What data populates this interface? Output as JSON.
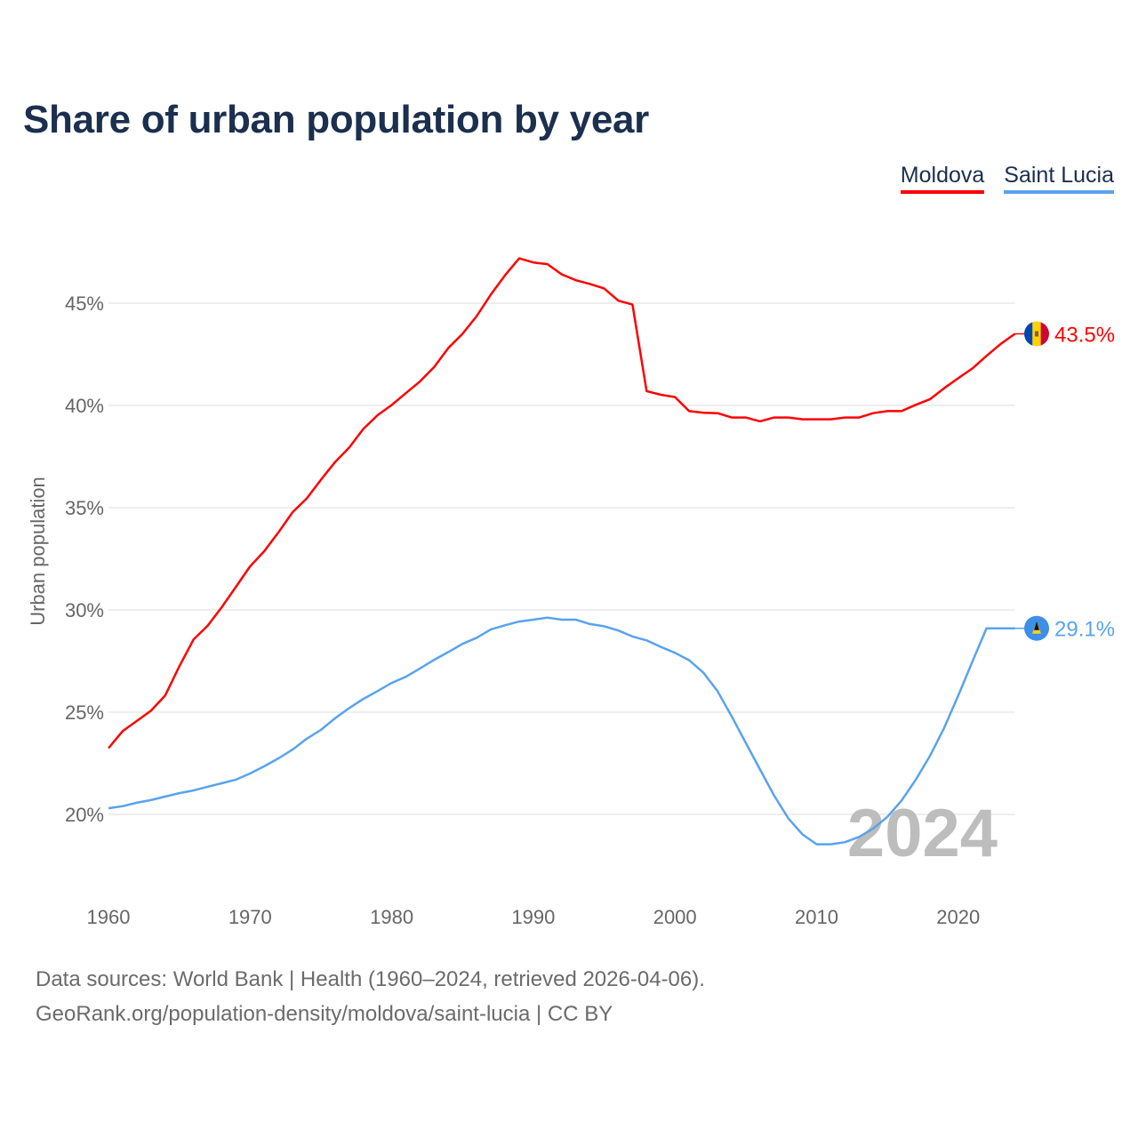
{
  "chart_data": {
    "type": "line",
    "title": "Share of urban population by year",
    "xlabel": "",
    "ylabel": "Urban population",
    "xlim": [
      1960,
      2024
    ],
    "ylim": [
      16.5,
      48.5
    ],
    "x_ticks": [
      1960,
      1970,
      1980,
      1990,
      2000,
      2010,
      2020
    ],
    "y_ticks": [
      20,
      25,
      30,
      35,
      40,
      45
    ],
    "y_tick_labels": [
      "20%",
      "25%",
      "30%",
      "35%",
      "40%",
      "45%"
    ],
    "grid": true,
    "legend_position": "top-right",
    "watermark_year": "2024",
    "x": [
      1960,
      1961,
      1962,
      1963,
      1964,
      1965,
      1966,
      1967,
      1968,
      1969,
      1970,
      1971,
      1972,
      1973,
      1974,
      1975,
      1976,
      1977,
      1978,
      1979,
      1980,
      1981,
      1982,
      1983,
      1984,
      1985,
      1986,
      1987,
      1988,
      1989,
      1990,
      1991,
      1992,
      1993,
      1994,
      1995,
      1996,
      1997,
      1998,
      1999,
      2000,
      2001,
      2002,
      2003,
      2004,
      2005,
      2006,
      2007,
      2008,
      2009,
      2010,
      2011,
      2012,
      2013,
      2014,
      2015,
      2016,
      2017,
      2018,
      2019,
      2020,
      2021,
      2022,
      2023,
      2024
    ],
    "series": [
      {
        "name": "Moldova",
        "color": "#ff0000",
        "end_label": "43.5%",
        "flag": "moldova-flag",
        "values": [
          23.24,
          24.07,
          24.57,
          25.07,
          25.81,
          27.23,
          28.55,
          29.22,
          30.13,
          31.13,
          32.13,
          32.87,
          33.79,
          34.78,
          35.45,
          36.36,
          37.23,
          37.94,
          38.85,
          39.52,
          40.02,
          40.6,
          41.18,
          41.88,
          42.81,
          43.5,
          44.37,
          45.42,
          46.36,
          47.19,
          46.99,
          46.91,
          46.41,
          46.12,
          45.94,
          45.72,
          45.12,
          44.93,
          40.7,
          40.52,
          40.41,
          39.72,
          39.64,
          39.62,
          39.41,
          39.41,
          39.22,
          39.41,
          39.41,
          39.32,
          39.32,
          39.32,
          39.41,
          39.41,
          39.62,
          39.72,
          39.72,
          40.03,
          40.3,
          40.84,
          41.33,
          41.81,
          42.42,
          43.01,
          43.5
        ]
      },
      {
        "name": "Saint Lucia",
        "color": "#58a3ee",
        "end_label": "29.1%",
        "flag": "saint-lucia-flag",
        "values": [
          20.3,
          20.4,
          20.57,
          20.7,
          20.87,
          21.04,
          21.17,
          21.35,
          21.52,
          21.7,
          22.0,
          22.35,
          22.74,
          23.17,
          23.7,
          24.13,
          24.7,
          25.2,
          25.65,
          26.03,
          26.43,
          26.73,
          27.14,
          27.56,
          27.94,
          28.34,
          28.64,
          29.05,
          29.25,
          29.43,
          29.52,
          29.62,
          29.52,
          29.52,
          29.31,
          29.2,
          28.99,
          28.7,
          28.51,
          28.19,
          27.9,
          27.54,
          26.94,
          26.03,
          24.8,
          23.5,
          22.2,
          20.92,
          19.81,
          19.02,
          18.54,
          18.54,
          18.64,
          18.9,
          19.31,
          19.88,
          20.68,
          21.69,
          22.85,
          24.22,
          25.81,
          27.47,
          29.1,
          29.1,
          29.1
        ]
      }
    ]
  },
  "footer": {
    "sources": "Data sources: World Bank | Health (1960–2024, retrieved 2026-04-06).",
    "credit": "GeoRank.org/population-density/moldova/saint-lucia | CC BY"
  }
}
